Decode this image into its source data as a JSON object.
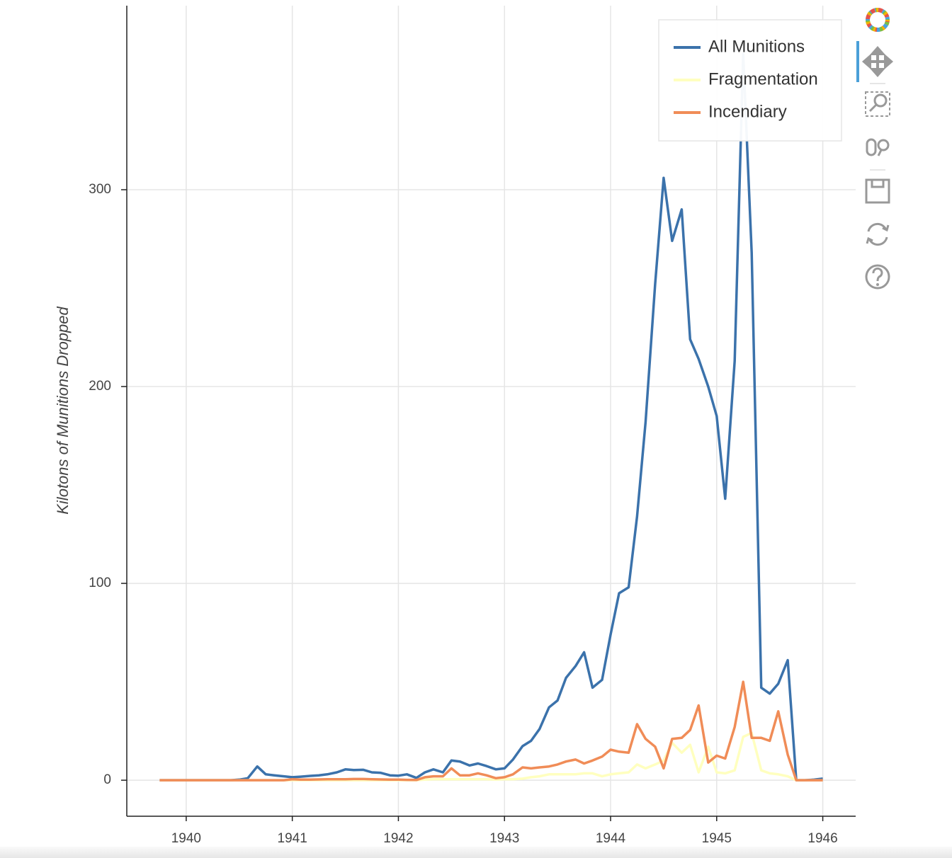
{
  "chart_data": {
    "type": "line",
    "y_label": "Kilotons of Munitions Dropped",
    "x": [
      1939.75,
      1939.83,
      1939.92,
      1940,
      1940.08,
      1940.17,
      1940.25,
      1940.33,
      1940.42,
      1940.5,
      1940.58,
      1940.67,
      1940.75,
      1940.83,
      1940.92,
      1941,
      1941.08,
      1941.17,
      1941.25,
      1941.33,
      1941.42,
      1941.5,
      1941.58,
      1941.67,
      1941.75,
      1941.83,
      1941.92,
      1942,
      1942.08,
      1942.17,
      1942.25,
      1942.33,
      1942.42,
      1942.5,
      1942.58,
      1942.67,
      1942.75,
      1942.83,
      1942.92,
      1943,
      1943.08,
      1943.17,
      1943.25,
      1943.33,
      1943.42,
      1943.5,
      1943.58,
      1943.67,
      1943.75,
      1943.83,
      1943.92,
      1944,
      1944.08,
      1944.17,
      1944.25,
      1944.33,
      1944.42,
      1944.5,
      1944.58,
      1944.67,
      1944.75,
      1944.83,
      1944.92,
      1945,
      1945.08,
      1945.17,
      1945.25,
      1945.33,
      1945.42,
      1945.5,
      1945.58,
      1945.67,
      1945.75,
      1945.83,
      1945.92,
      1946
    ],
    "series": [
      {
        "name": "All Munitions",
        "color": "#3b72ab",
        "values": [
          0,
          0,
          0,
          0,
          0,
          0,
          0,
          0,
          0,
          0.3,
          1,
          7,
          3,
          2.5,
          2,
          1.5,
          1.8,
          2.2,
          2.5,
          3,
          4,
          5.5,
          5.2,
          5.3,
          4,
          3.8,
          2.5,
          2.3,
          3,
          1.2,
          4,
          5.5,
          4,
          10,
          9.5,
          7.5,
          8.5,
          7.2,
          5.5,
          6,
          10.5,
          17.3,
          20,
          26,
          37,
          40.5,
          52,
          58,
          65,
          47,
          51,
          74,
          95,
          98,
          134,
          182,
          252,
          306,
          274,
          290,
          224,
          214,
          200,
          185,
          143,
          213,
          369,
          268,
          47,
          44,
          49,
          61,
          0,
          0,
          0.3,
          0.8
        ]
      },
      {
        "name": "Fragmentation",
        "color": "#ffffbf",
        "values": [
          0,
          0,
          0,
          0,
          0,
          0,
          0,
          0,
          0,
          0,
          0,
          0,
          0,
          0,
          0,
          0,
          0,
          0,
          0,
          0,
          0,
          0,
          0,
          0,
          0,
          0,
          0,
          0,
          0,
          0,
          0.3,
          0.5,
          0.5,
          0.5,
          0.5,
          0.5,
          0.5,
          0.5,
          0.3,
          0.5,
          0.5,
          0.8,
          1.5,
          2,
          3,
          3,
          3,
          3,
          3.5,
          3.5,
          2,
          3,
          3.5,
          4,
          8,
          6,
          8,
          10,
          19,
          14,
          18,
          4,
          17,
          4,
          3.5,
          5,
          22,
          24,
          5,
          3.5,
          3,
          2,
          0,
          0,
          0,
          0
        ]
      },
      {
        "name": "Incendiary",
        "color": "#f08c57",
        "values": [
          0,
          0,
          0,
          0,
          0,
          0,
          0,
          0,
          0,
          0,
          0,
          0,
          0,
          0,
          0,
          0.5,
          0.3,
          0.3,
          0.4,
          0.5,
          0.5,
          0.5,
          0.6,
          0.6,
          0.5,
          0.4,
          0.3,
          0.3,
          0.2,
          0.1,
          1.5,
          2,
          2,
          6,
          2.5,
          2.5,
          3.5,
          2.5,
          1,
          1.5,
          3,
          6.5,
          6,
          6.5,
          7,
          8,
          9.5,
          10.5,
          8.5,
          10,
          12,
          15.5,
          14.5,
          14,
          28.5,
          21,
          17,
          6,
          21,
          21.5,
          25.5,
          38,
          9,
          12.5,
          11,
          27,
          50,
          21.5,
          21.5,
          20,
          35,
          13,
          0,
          0,
          0,
          0
        ]
      }
    ],
    "xlim": [
      1939.44,
      1946.31
    ],
    "xticks": [
      1940,
      1941,
      1942,
      1943,
      1944,
      1945,
      1946
    ],
    "ylim": [
      -18.3,
      393.5
    ],
    "yticks": [
      0,
      100,
      200,
      300
    ],
    "grid": true,
    "legend_loc": "top-right"
  }
}
